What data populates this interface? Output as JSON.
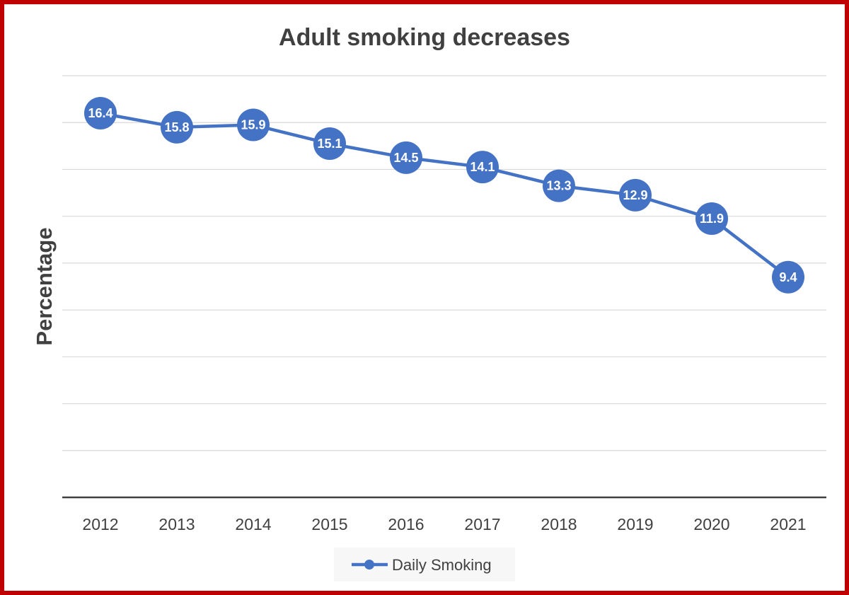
{
  "chart_data": {
    "type": "line",
    "title": "Adult smoking decreases",
    "xlabel": "",
    "ylabel": "Percentage",
    "categories": [
      "2012",
      "2013",
      "2014",
      "2015",
      "2016",
      "2017",
      "2018",
      "2019",
      "2020",
      "2021"
    ],
    "series": [
      {
        "name": "Daily Smoking",
        "values": [
          16.4,
          15.8,
          15.9,
          15.1,
          14.5,
          14.1,
          13.3,
          12.9,
          11.9,
          9.4
        ],
        "labels": [
          "16.4",
          "15.8",
          "15.9",
          "15.1",
          "14.5",
          "14.1",
          "13.3",
          "12.9",
          "11.9",
          "9.4"
        ],
        "color": "#4472c4"
      }
    ],
    "ylim": [
      0,
      18
    ],
    "y_tick_labels_shown": false,
    "grid": true,
    "legend_position": "bottom"
  },
  "colors": {
    "frame_border": "#c00000",
    "series": "#4472c4",
    "gridline": "#d9d9d9",
    "axis_line": "#404040",
    "text": "#404040"
  }
}
